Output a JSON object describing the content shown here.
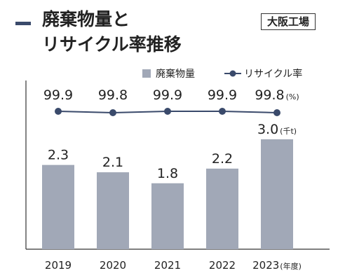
{
  "header": {
    "title_line1": "廃棄物量と",
    "title_line2": "リサイクル率推移",
    "plant_label": "大阪工場"
  },
  "chart_data": {
    "type": "bar",
    "categories": [
      "2019",
      "2020",
      "2021",
      "2022",
      "2023"
    ],
    "series": [
      {
        "name": "廃棄物量",
        "type": "bar",
        "values": [
          2.3,
          2.1,
          1.8,
          2.2,
          3.0
        ],
        "labels": [
          "2.3",
          "2.1",
          "1.8",
          "2.2",
          "3.0"
        ],
        "unit": "(千t)",
        "color": "#a1a8b7"
      },
      {
        "name": "リサイクル率",
        "type": "line",
        "values": [
          99.9,
          99.8,
          99.9,
          99.9,
          99.8
        ],
        "labels": [
          "99.9",
          "99.8",
          "99.9",
          "99.9",
          "99.8"
        ],
        "unit": "(%)",
        "color": "#3a4a6b"
      }
    ],
    "x_unit": "(年度)",
    "bar_ylim": [
      0,
      4.0
    ],
    "legend_position": "top-right",
    "grid": false
  }
}
